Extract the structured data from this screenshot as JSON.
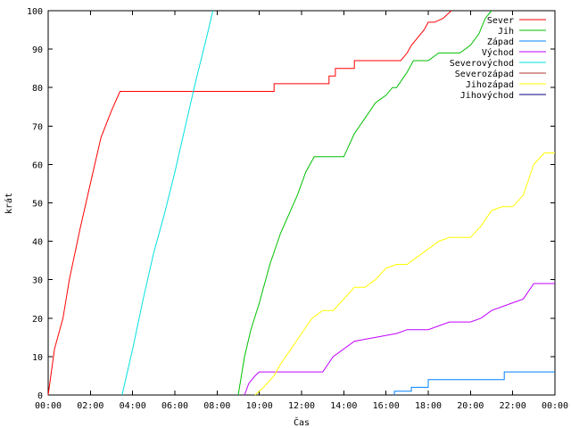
{
  "chart_data": {
    "type": "line",
    "title": "",
    "xlabel": "Čas",
    "ylabel": "krát",
    "xlim": [
      0,
      24
    ],
    "ylim": [
      0,
      100
    ],
    "x_ticks": [
      {
        "value": 0,
        "label": "00:00"
      },
      {
        "value": 2,
        "label": "02:00"
      },
      {
        "value": 4,
        "label": "04:00"
      },
      {
        "value": 6,
        "label": "06:00"
      },
      {
        "value": 8,
        "label": "08:00"
      },
      {
        "value": 10,
        "label": "10:00"
      },
      {
        "value": 12,
        "label": "12:00"
      },
      {
        "value": 14,
        "label": "14:00"
      },
      {
        "value": 16,
        "label": "16:00"
      },
      {
        "value": 18,
        "label": "18:00"
      },
      {
        "value": 20,
        "label": "20:00"
      },
      {
        "value": 22,
        "label": "22:00"
      },
      {
        "value": 24,
        "label": "00:00"
      }
    ],
    "y_ticks": [
      0,
      10,
      20,
      30,
      40,
      50,
      60,
      70,
      80,
      90,
      100
    ],
    "grid": false,
    "legend_position": "top-right",
    "series": [
      {
        "name": "Sever",
        "color": "#ff0000",
        "x": [
          0,
          0.3,
          0.7,
          1.0,
          1.5,
          2.0,
          2.5,
          3.0,
          3.4,
          5.0,
          7.0,
          9.0,
          10.7,
          10.7,
          12.0,
          13.3,
          13.3,
          13.6,
          13.6,
          14.5,
          14.5,
          15.5,
          16.7,
          17.0,
          17.2,
          17.5,
          17.8,
          18.0,
          18.3,
          18.7,
          18.9,
          19.1
        ],
        "values": [
          0,
          12,
          20,
          30,
          43,
          55,
          67,
          74,
          79,
          79,
          79,
          79,
          79,
          81,
          81,
          81,
          83,
          83,
          85,
          85,
          87,
          87,
          87,
          89,
          91,
          93,
          95,
          97,
          97,
          98,
          99,
          100
        ]
      },
      {
        "name": "Jih",
        "color": "#00c000",
        "x": [
          9.0,
          9.3,
          9.6,
          10.0,
          10.5,
          11.0,
          11.4,
          11.8,
          12.2,
          12.6,
          13.0,
          13.4,
          14.0,
          14.5,
          15.0,
          15.5,
          16.0,
          16.3,
          16.5,
          17.0,
          17.3,
          17.8,
          18.0,
          18.5,
          19.0,
          19.5,
          20.0,
          20.4,
          20.7,
          21.0
        ],
        "values": [
          0,
          10,
          17,
          24,
          34,
          42,
          47,
          52,
          58,
          62,
          62,
          62,
          62,
          68,
          72,
          76,
          78,
          80,
          80,
          84,
          87,
          87,
          87,
          89,
          89,
          89,
          91,
          94,
          98,
          100
        ]
      },
      {
        "name": "Západ",
        "color": "#0080ff",
        "x": [
          16.4,
          16.4,
          17.2,
          17.2,
          18.0,
          18.0,
          21.6,
          21.6,
          24.0
        ],
        "values": [
          0,
          1,
          1,
          2,
          2,
          4,
          4,
          6,
          6
        ]
      },
      {
        "name": "Východ",
        "color": "#c000ff",
        "x": [
          9.3,
          9.5,
          9.8,
          10.0,
          11.0,
          13.0,
          13.5,
          14.5,
          15.5,
          16.5,
          17.0,
          18.0,
          19.0,
          20.0,
          20.5,
          21.0,
          22.0,
          22.5,
          23.0,
          24.0
        ],
        "values": [
          0,
          3,
          5,
          6,
          6,
          6,
          10,
          14,
          15,
          16,
          17,
          17,
          19,
          19,
          20,
          22,
          24,
          25,
          29,
          29
        ]
      },
      {
        "name": "Severovýchod",
        "color": "#00e0e0",
        "x": [
          3.5,
          4.0,
          4.5,
          5.0,
          5.5,
          6.0,
          6.5,
          7.0,
          7.5,
          7.8
        ],
        "values": [
          0,
          12,
          25,
          37,
          47,
          58,
          70,
          82,
          93,
          100
        ]
      },
      {
        "name": "Severozápad",
        "color": "#b03030",
        "x": [],
        "values": []
      },
      {
        "name": "Jihozápad",
        "color": "#ffff00",
        "x": [
          9.8,
          10.2,
          10.7,
          11.0,
          11.5,
          12.0,
          12.5,
          13.0,
          13.5,
          14.0,
          14.5,
          15.0,
          15.5,
          16.0,
          16.5,
          17.0,
          17.5,
          18.0,
          18.5,
          19.0,
          20.0,
          20.5,
          21.0,
          21.5,
          22.0,
          22.5,
          23.0,
          23.5,
          24.0
        ],
        "values": [
          0,
          2,
          5,
          8,
          12,
          16,
          20,
          22,
          22,
          25,
          28,
          28,
          30,
          33,
          34,
          34,
          36,
          38,
          40,
          41,
          41,
          44,
          48,
          49,
          49,
          52,
          60,
          63,
          63
        ]
      },
      {
        "name": "Jihovýchod",
        "color": "#000080",
        "x": [],
        "values": []
      }
    ]
  }
}
